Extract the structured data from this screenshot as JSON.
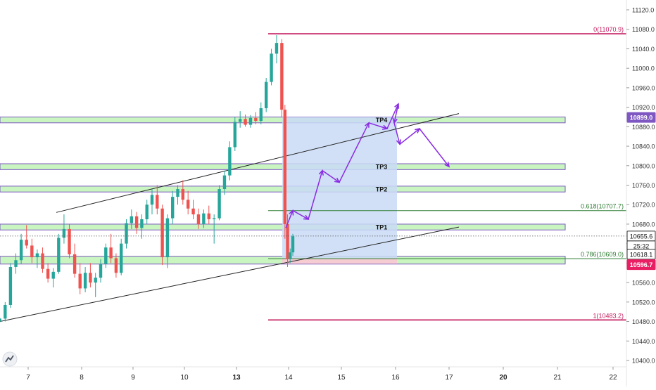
{
  "chart_data": {
    "type": "candlestick",
    "x_ticks": [
      "7",
      "8",
      "9",
      "10",
      "13",
      "14",
      "15",
      "16",
      "17",
      "20",
      "21",
      "22"
    ],
    "y_ticks": [
      10400,
      10440,
      10480,
      10520,
      10560,
      10600,
      10640,
      10680,
      10720,
      10760,
      10800,
      10840,
      10880,
      10920,
      10960,
      11000,
      11040,
      11080,
      11120
    ],
    "y_tick_labels": [
      "10400.0",
      "10440.0",
      "10480.0",
      "10520.0",
      "10560.0",
      "10600.0",
      "10640.0",
      "10680.0",
      "10720.0",
      "10760.0",
      "10800.0",
      "10840.0",
      "10880.0",
      "10920.0",
      "10960.0",
      "11000.0",
      "11040.0",
      "11080.0",
      "11120.0"
    ],
    "ylim": [
      10387,
      11133
    ],
    "xlim": [
      6.45,
      22.45
    ],
    "colors": {
      "up": "#26a69a",
      "down": "#ef5350",
      "zone_fill": "#c8f5c0",
      "zone_border": "#7e57c2",
      "box_fill": "#c9daf6",
      "fib_magenta": "#c2185b",
      "fib_green": "#2e7d32",
      "arrow": "#8a2be2"
    },
    "candles": [
      [
        6.47,
        10480,
        10488,
        10478,
        10486
      ],
      [
        6.57,
        10486,
        10520,
        10480,
        10514
      ],
      [
        6.67,
        10514,
        10600,
        10508,
        10592
      ],
      [
        6.77,
        10592,
        10620,
        10578,
        10606
      ],
      [
        6.87,
        10606,
        10660,
        10598,
        10648
      ],
      [
        6.97,
        10648,
        10678,
        10630,
        10636
      ],
      [
        7.07,
        10636,
        10650,
        10600,
        10612
      ],
      [
        7.17,
        10612,
        10628,
        10590,
        10620
      ],
      [
        7.27,
        10620,
        10632,
        10580,
        10588
      ],
      [
        7.37,
        10588,
        10600,
        10560,
        10568
      ],
      [
        7.47,
        10568,
        10590,
        10550,
        10582
      ],
      [
        7.57,
        10582,
        10660,
        10578,
        10652
      ],
      [
        7.67,
        10652,
        10700,
        10640,
        10670
      ],
      [
        7.77,
        10670,
        10680,
        10610,
        10618
      ],
      [
        7.87,
        10618,
        10640,
        10570,
        10578
      ],
      [
        7.97,
        10578,
        10600,
        10536,
        10548
      ],
      [
        8.07,
        10548,
        10592,
        10540,
        10580
      ],
      [
        8.17,
        10580,
        10600,
        10550,
        10560
      ],
      [
        8.27,
        10560,
        10580,
        10530,
        10570
      ],
      [
        8.37,
        10570,
        10608,
        10560,
        10598
      ],
      [
        8.47,
        10598,
        10640,
        10590,
        10632
      ],
      [
        8.57,
        10632,
        10660,
        10600,
        10610
      ],
      [
        8.67,
        10610,
        10620,
        10570,
        10580
      ],
      [
        8.77,
        10580,
        10650,
        10575,
        10640
      ],
      [
        8.87,
        10640,
        10690,
        10630,
        10682
      ],
      [
        8.97,
        10682,
        10710,
        10670,
        10696
      ],
      [
        9.07,
        10696,
        10705,
        10660,
        10672
      ],
      [
        9.17,
        10672,
        10700,
        10650,
        10690
      ],
      [
        9.27,
        10690,
        10730,
        10680,
        10720
      ],
      [
        9.37,
        10720,
        10752,
        10700,
        10740
      ],
      [
        9.47,
        10740,
        10760,
        10700,
        10712
      ],
      [
        9.57,
        10712,
        10720,
        10596,
        10612
      ],
      [
        9.67,
        10612,
        10700,
        10590,
        10692
      ],
      [
        9.77,
        10692,
        10748,
        10680,
        10736
      ],
      [
        9.87,
        10736,
        10760,
        10720,
        10752
      ],
      [
        9.97,
        10752,
        10770,
        10720,
        10730
      ],
      [
        10.07,
        10730,
        10748,
        10700,
        10712
      ],
      [
        10.17,
        10712,
        10730,
        10690,
        10700
      ],
      [
        10.27,
        10700,
        10712,
        10670,
        10680
      ],
      [
        10.37,
        10680,
        10710,
        10672,
        10702
      ],
      [
        10.47,
        10702,
        10718,
        10680,
        10690
      ],
      [
        10.57,
        10690,
        10700,
        10640,
        10692
      ],
      [
        10.67,
        10692,
        10760,
        10688,
        10752
      ],
      [
        10.77,
        10752,
        10790,
        10740,
        10780
      ],
      [
        10.87,
        10780,
        10850,
        10770,
        10838
      ],
      [
        10.97,
        10838,
        10900,
        10830,
        10890
      ],
      [
        11.07,
        10890,
        10912,
        10878,
        10896
      ],
      [
        11.17,
        10896,
        10905,
        10880,
        10884
      ],
      [
        11.27,
        10884,
        10904,
        10878,
        10898
      ],
      [
        11.37,
        10898,
        10910,
        10885,
        10892
      ],
      [
        11.47,
        10892,
        10930,
        10885,
        10918
      ],
      [
        11.57,
        10918,
        10980,
        10910,
        10972
      ],
      [
        11.67,
        10972,
        11040,
        10965,
        11030
      ],
      [
        11.77,
        11030,
        11068,
        11010,
        11052
      ],
      [
        11.87,
        11052,
        11060,
        10900,
        10915
      ],
      [
        11.93,
        10915,
        10925,
        10650,
        10680
      ],
      [
        11.98,
        10680,
        10700,
        10592,
        10608
      ],
      [
        12.03,
        10608,
        10630,
        10600,
        10622
      ],
      [
        12.08,
        10622,
        10660,
        10615,
        10655
      ]
    ],
    "zones": [
      {
        "label": "TP4",
        "low": 10888,
        "high": 10900,
        "x1": 0,
        "x2": 803
      },
      {
        "label": "TP3",
        "low": 10792,
        "high": 10804,
        "x1": 0,
        "x2": 803
      },
      {
        "label": "TP2",
        "low": 10746,
        "high": 10758,
        "x1": 0,
        "x2": 803
      },
      {
        "label": "TP1",
        "low": 10668,
        "high": 10680,
        "x1": 0,
        "x2": 803
      },
      {
        "label": "",
        "low": 10598,
        "high": 10614,
        "x1": 0,
        "x2": 803
      }
    ],
    "fib_levels": [
      {
        "label": "0(11070.9)",
        "value": 11070.9,
        "color": "magenta"
      },
      {
        "label": "0.618(10707.7)",
        "value": 10707.7,
        "color": "green"
      },
      {
        "label": "0.786(10609.0)",
        "value": 10609.0,
        "color": "green"
      },
      {
        "label": "1(10483.2)",
        "value": 10483.2,
        "color": "magenta"
      }
    ],
    "box": {
      "x1": 401,
      "x2": 564,
      "top": 10900,
      "bottom": 10610
    },
    "trend_lines": [
      {
        "x1": 80,
        "y1": 10704,
        "x2": 652,
        "y2": 10907
      },
      {
        "x1": 0,
        "y1": 10480,
        "x2": 652,
        "y2": 10674
      }
    ],
    "arrow_path": [
      [
        406,
        10672
      ],
      [
        416,
        10708
      ],
      [
        438,
        10690
      ],
      [
        458,
        10790
      ],
      [
        482,
        10766
      ],
      [
        524,
        10888
      ],
      [
        550,
        10876
      ],
      [
        566,
        10927
      ],
      [
        560,
        10888
      ],
      [
        568,
        10844
      ],
      [
        596,
        10876
      ],
      [
        638,
        10798
      ]
    ],
    "price_badges": [
      {
        "label": "10899.0",
        "value": 10899.0,
        "bg": "#7e57c2"
      },
      {
        "label": "10655.6",
        "value": 10655.6,
        "bg": "#ffffff"
      },
      {
        "label": "25:32",
        "value": 10635,
        "bg": "#ffffff"
      },
      {
        "label": "10618.1",
        "value": 10618.1,
        "bg": "#ffffff"
      },
      {
        "label": "10596.7",
        "value": 10596.7,
        "bg": "#e91e63"
      }
    ]
  }
}
